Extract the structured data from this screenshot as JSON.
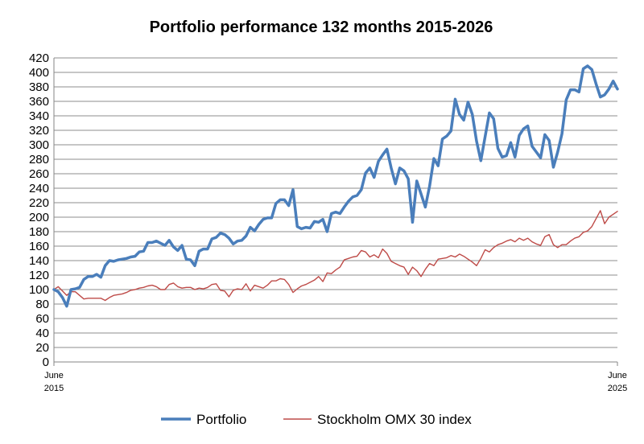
{
  "chart_data": {
    "type": "line",
    "title": "Portfolio performance 132 months 2015-2026",
    "xlabel": "",
    "ylabel": "",
    "ylim": [
      0,
      420
    ],
    "ytick_step": 20,
    "x_tick_labels": [
      {
        "line1": "June",
        "line2": "2015"
      },
      {
        "line1": "June",
        "line2": "2025"
      }
    ],
    "grid": "horizontal",
    "legend_position": "bottom",
    "series": [
      {
        "name": "Portfolio",
        "color": "#4a7ebb",
        "values": [
          100,
          97,
          89,
          77,
          100,
          101,
          103,
          114,
          118,
          118,
          121,
          117,
          133,
          140,
          139,
          141,
          142,
          143,
          145,
          146,
          152,
          153,
          165,
          165,
          167,
          164,
          161,
          168,
          159,
          154,
          161,
          142,
          141,
          133,
          153,
          156,
          156,
          170,
          172,
          178,
          176,
          171,
          163,
          167,
          168,
          174,
          186,
          181,
          190,
          197,
          199,
          199,
          219,
          224,
          224,
          216,
          238,
          187,
          184,
          186,
          185,
          194,
          193,
          197,
          180,
          205,
          207,
          205,
          214,
          222,
          228,
          230,
          238,
          261,
          268,
          255,
          277,
          286,
          294,
          268,
          246,
          268,
          264,
          253,
          193,
          250,
          232,
          214,
          243,
          281,
          271,
          308,
          312,
          319,
          363,
          342,
          334,
          359,
          342,
          305,
          278,
          311,
          344,
          336,
          295,
          283,
          285,
          303,
          283,
          313,
          322,
          326,
          298,
          290,
          282,
          314,
          306,
          269,
          290,
          315,
          362,
          376,
          376,
          373,
          405,
          409,
          404,
          384,
          366,
          369,
          377,
          388,
          377
        ],
        "legend_label": "Portfolio"
      },
      {
        "name": "Stockholm OMX 30 index",
        "color": "#be4b48",
        "values": [
          100,
          104,
          98,
          92,
          97,
          97,
          92,
          87,
          88,
          88,
          88,
          88,
          85,
          89,
          92,
          93,
          94,
          96,
          99,
          100,
          102,
          103,
          105,
          106,
          104,
          100,
          100,
          107,
          109,
          104,
          102,
          103,
          103,
          100,
          102,
          101,
          103,
          107,
          108,
          99,
          98,
          90,
          99,
          101,
          100,
          108,
          98,
          106,
          104,
          102,
          106,
          112,
          112,
          115,
          114,
          107,
          96,
          101,
          105,
          107,
          110,
          113,
          118,
          111,
          123,
          122,
          127,
          131,
          141,
          143,
          145,
          146,
          154,
          152,
          145,
          148,
          144,
          156,
          150,
          139,
          136,
          133,
          131,
          121,
          131,
          126,
          118,
          128,
          136,
          133,
          142,
          143,
          144,
          147,
          145,
          149,
          146,
          142,
          138,
          133,
          143,
          155,
          152,
          158,
          162,
          164,
          167,
          169,
          166,
          171,
          168,
          171,
          166,
          163,
          161,
          173,
          176,
          162,
          158,
          162,
          162,
          167,
          171,
          173,
          179,
          181,
          187,
          198,
          209,
          191,
          200,
          204,
          208
        ],
        "legend_label": "Stockholm OMX 30 index"
      }
    ]
  }
}
